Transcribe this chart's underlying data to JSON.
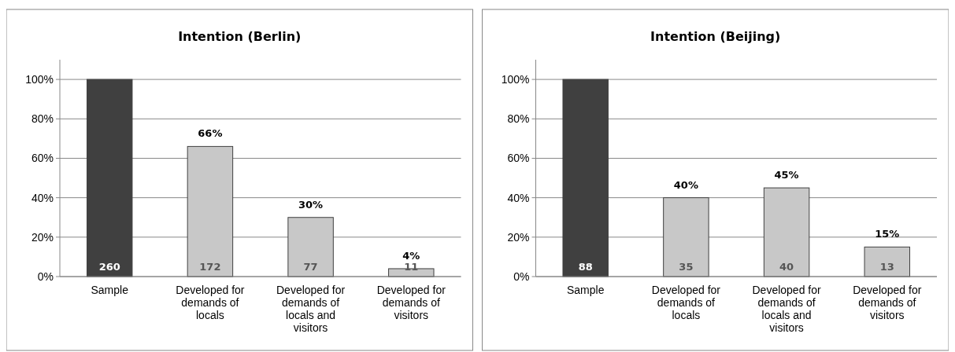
{
  "chart_data": [
    {
      "type": "bar",
      "title": "Intention (Berlin)",
      "categories": [
        "Sample",
        "Developed for demands of locals",
        "Developed for demands of locals and visitors",
        "Developed for demands of visitors"
      ],
      "values": [
        100,
        66,
        30,
        4
      ],
      "colors": [
        "#404040",
        "#c8c8c8",
        "#c8c8c8",
        "#c8c8c8"
      ],
      "value_labels": [
        null,
        "66%",
        "30%",
        "4%"
      ],
      "ylim": [
        0,
        110
      ],
      "yticks": [
        {
          "value": 0,
          "label": "0%"
        },
        {
          "value": 20,
          "label": "20%"
        },
        {
          "value": 40,
          "label": "40%"
        },
        {
          "value": 60,
          "label": "60%"
        },
        {
          "value": 80,
          "label": "80%"
        },
        {
          "value": 100,
          "label": "100%"
        }
      ],
      "grid": "y",
      "annotations": [
        {
          "text": "260",
          "x": "Sample",
          "y": 0
        },
        {
          "text": "172",
          "x": "Developed for demands of locals",
          "y": 0
        },
        {
          "text": "77",
          "x": "Developed for demands of locals and visitors",
          "y": 0
        },
        {
          "text": "11",
          "x": "Developed for demands of visitors",
          "y": 0
        }
      ]
    },
    {
      "type": "bar",
      "title": "Intention (Beijing)",
      "categories": [
        "Sample",
        "Developed for demands of locals",
        "Developed for demands of locals and visitors",
        "Developed for demands of visitors"
      ],
      "values": [
        100,
        40,
        45,
        15
      ],
      "colors": [
        "#404040",
        "#c8c8c8",
        "#c8c8c8",
        "#c8c8c8"
      ],
      "value_labels": [
        null,
        "40%",
        "45%",
        "15%"
      ],
      "ylim": [
        0,
        110
      ],
      "yticks": [
        {
          "value": 0,
          "label": "0%"
        },
        {
          "value": 20,
          "label": "20%"
        },
        {
          "value": 40,
          "label": "40%"
        },
        {
          "value": 60,
          "label": "60%"
        },
        {
          "value": 80,
          "label": "80%"
        },
        {
          "value": 100,
          "label": "100%"
        }
      ],
      "grid": "y",
      "annotations": [
        {
          "text": "88",
          "x": "Sample",
          "y": 0
        },
        {
          "text": "35",
          "x": "Developed for demands of locals",
          "y": 0
        },
        {
          "text": "40",
          "x": "Developed for demands of locals and visitors",
          "y": 0
        },
        {
          "text": "13",
          "x": "Developed for demands of visitors",
          "y": 0
        }
      ]
    }
  ]
}
